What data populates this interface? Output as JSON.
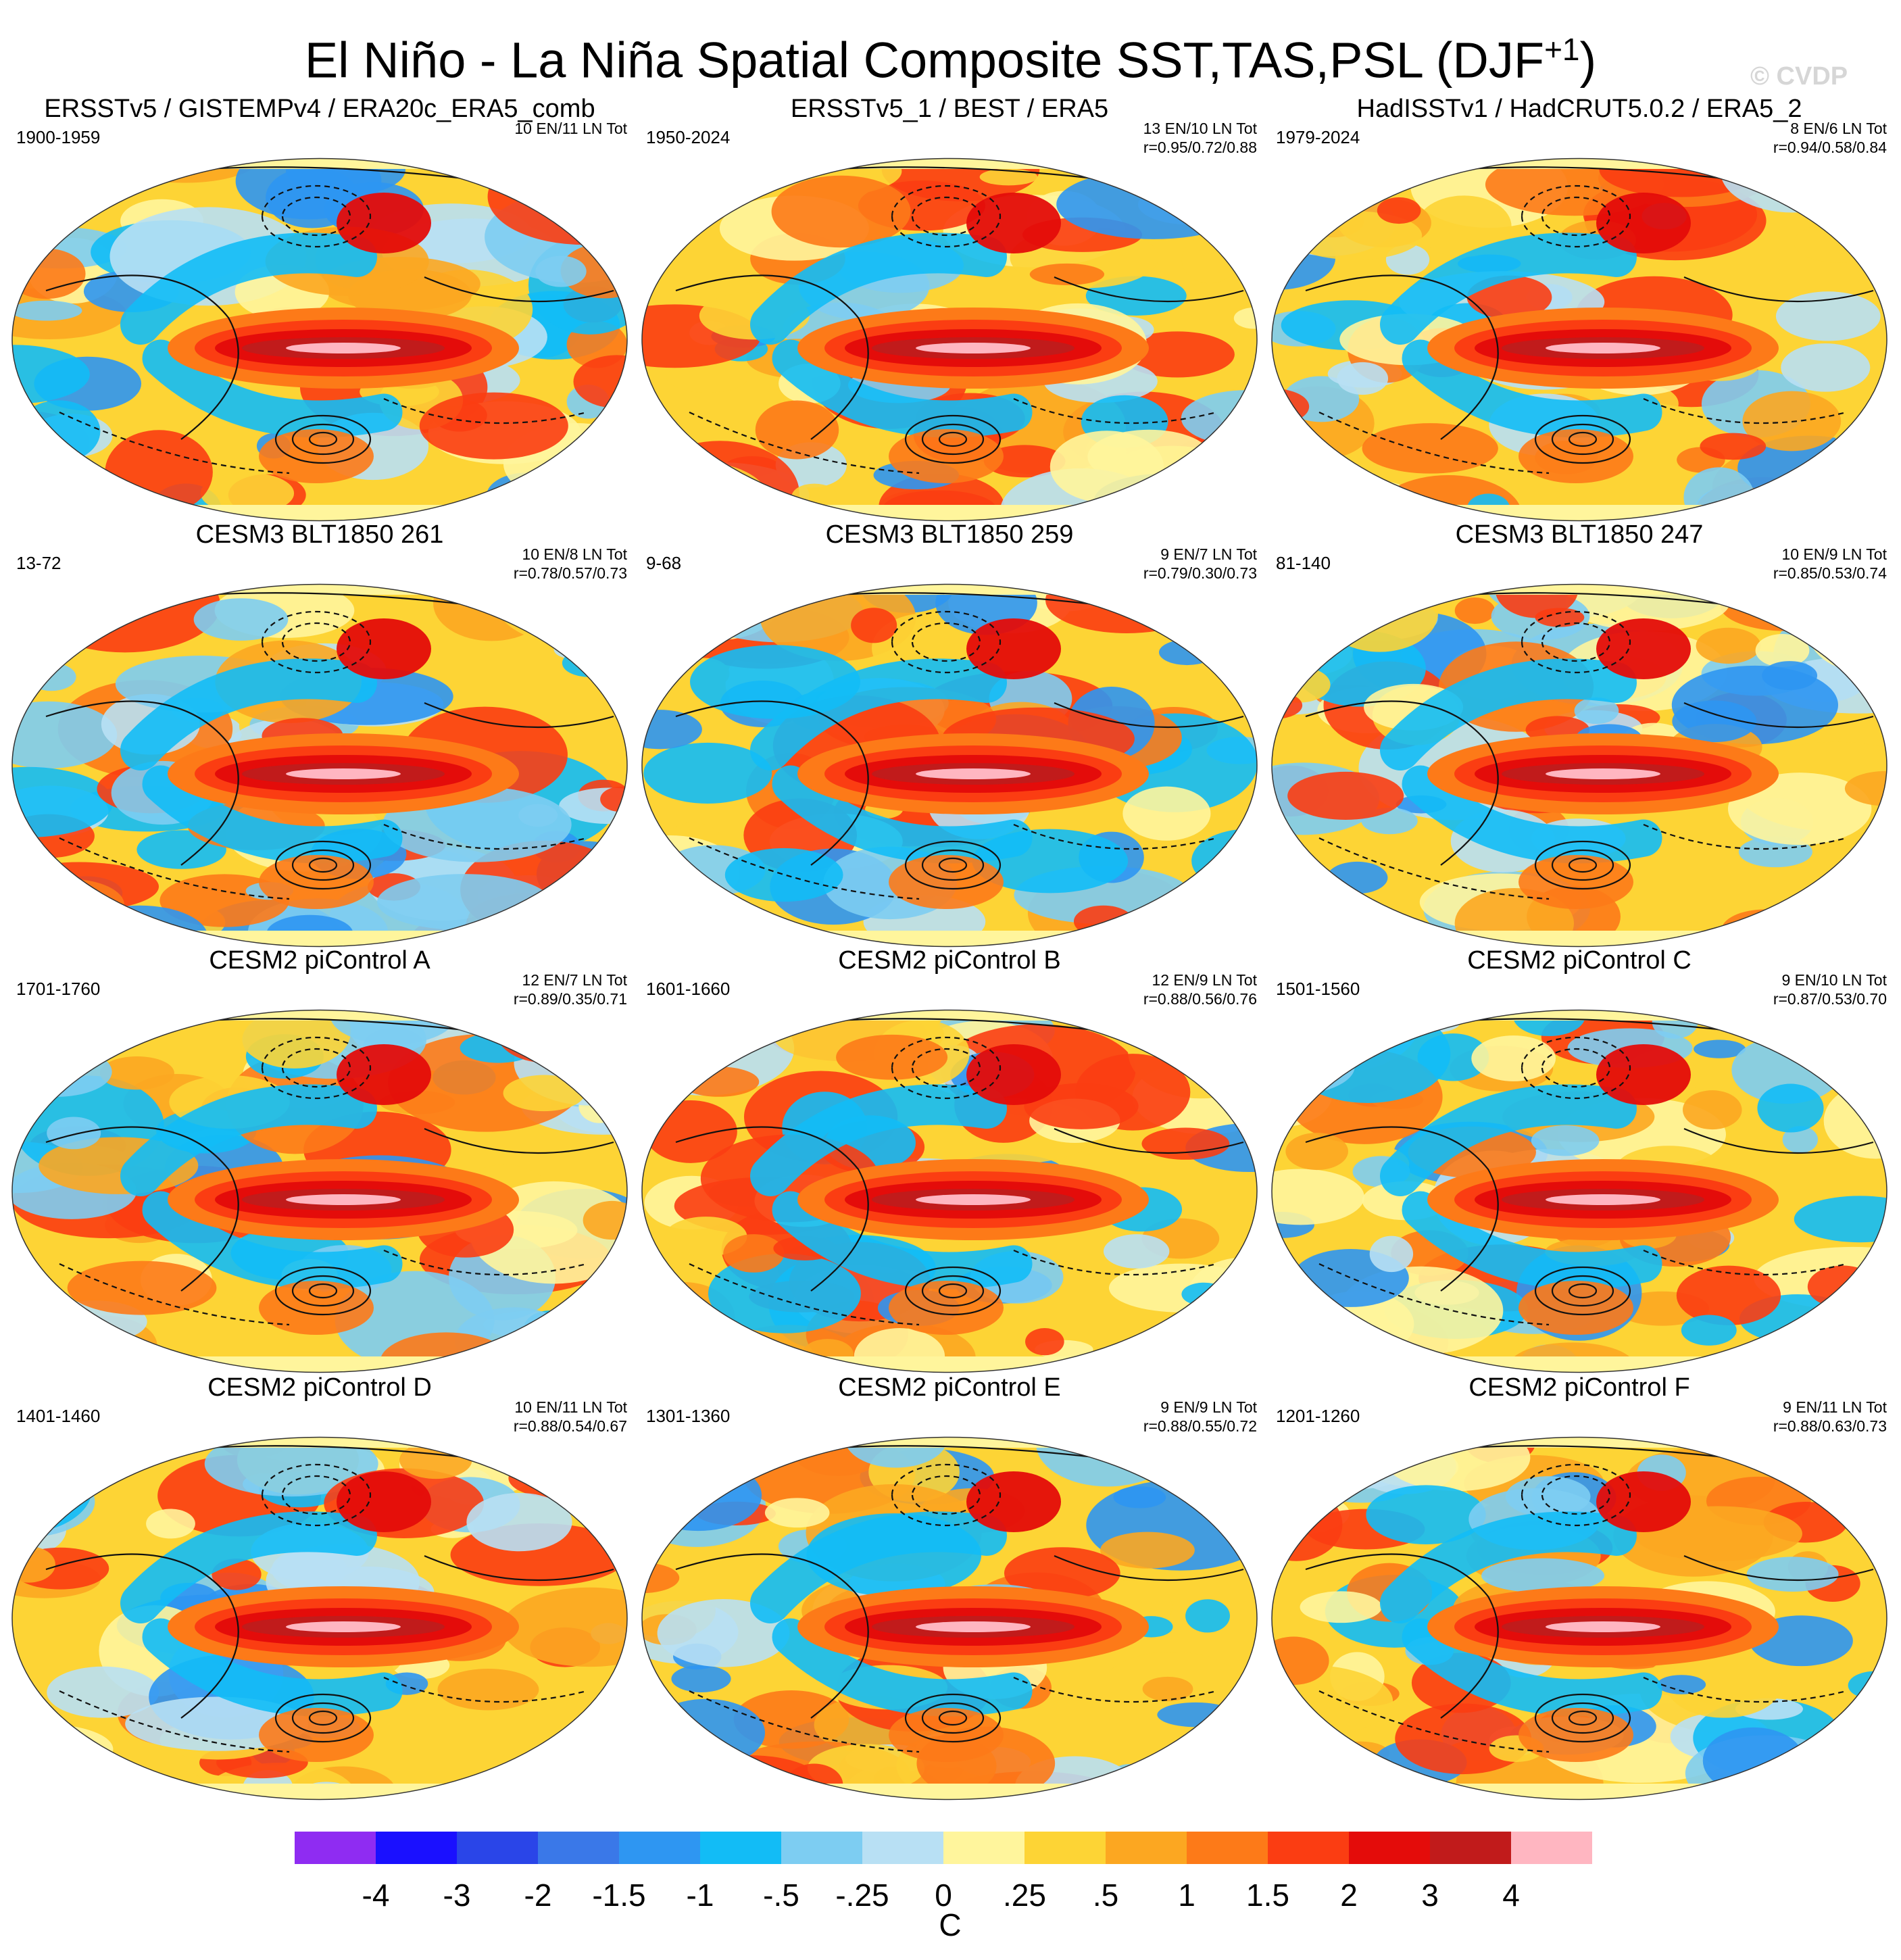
{
  "figure": {
    "title_main": "El Niño - La Niña Spatial Composite SST,TAS,PSL (DJF",
    "title_sup": "+1",
    "title_end": ")",
    "watermark": "© CVDP"
  },
  "chart_data": {
    "type": "heatmap",
    "description": "Composite maps of surface temperature anomaly (shaded) with sea level pressure contours",
    "panels": [
      {
        "title": "ERSSTv5 / GISTEMPv4 / ERA20c_ERA5_comb",
        "years": "1900-1959",
        "counts": "10 EN/11 LN Tot",
        "corr": ""
      },
      {
        "title": "ERSSTv5_1 / BEST / ERA5",
        "years": "1950-2024",
        "counts": "13 EN/10 LN Tot",
        "corr": "r=0.95/0.72/0.88"
      },
      {
        "title": "HadISSTv1 / HadCRUT5.0.2 / ERA5_2",
        "years": "1979-2024",
        "counts": "8 EN/6 LN Tot",
        "corr": "r=0.94/0.58/0.84"
      },
      {
        "title": "CESM3 BLT1850 261",
        "years": "13-72",
        "counts": "10 EN/8 LN Tot",
        "corr": "r=0.78/0.57/0.73"
      },
      {
        "title": "CESM3 BLT1850 259",
        "years": "9-68",
        "counts": "9 EN/7 LN Tot",
        "corr": "r=0.79/0.30/0.73"
      },
      {
        "title": "CESM3 BLT1850 247",
        "years": "81-140",
        "counts": "10 EN/9 LN Tot",
        "corr": "r=0.85/0.53/0.74"
      },
      {
        "title": "CESM2 piControl A",
        "years": "1701-1760",
        "counts": "12 EN/7 LN Tot",
        "corr": "r=0.89/0.35/0.71"
      },
      {
        "title": "CESM2 piControl B",
        "years": "1601-1660",
        "counts": "12 EN/9 LN Tot",
        "corr": "r=0.88/0.56/0.76"
      },
      {
        "title": "CESM2 piControl C",
        "years": "1501-1560",
        "counts": "9 EN/10 LN Tot",
        "corr": "r=0.87/0.53/0.70"
      },
      {
        "title": "CESM2 piControl D",
        "years": "1401-1460",
        "counts": "10 EN/11 LN Tot",
        "corr": "r=0.88/0.54/0.67"
      },
      {
        "title": "CESM2 piControl E",
        "years": "1301-1360",
        "counts": "9 EN/9 LN Tot",
        "corr": "r=0.88/0.55/0.72"
      },
      {
        "title": "CESM2 piControl F",
        "years": "1201-1260",
        "counts": "9 EN/11 LN Tot",
        "corr": "r=0.88/0.63/0.73"
      }
    ],
    "colorbar": {
      "unit": "C",
      "labels": [
        "-4",
        "-3",
        "-2",
        "-1.5",
        "-1",
        "-.5",
        "-.25",
        "0",
        ".25",
        ".5",
        "1",
        "1.5",
        "2",
        "3",
        "4"
      ],
      "colors": [
        "#8f2cf2",
        "#1a10ff",
        "#2a45e8",
        "#3a78e8",
        "#2e96f2",
        "#12bcf6",
        "#7dcdf2",
        "#b8e0f4",
        "#fff59c",
        "#fdd435",
        "#fca721",
        "#fd7a18",
        "#fb3d12",
        "#e40c0a",
        "#c11b1b",
        "#ffb6c1"
      ]
    }
  }
}
